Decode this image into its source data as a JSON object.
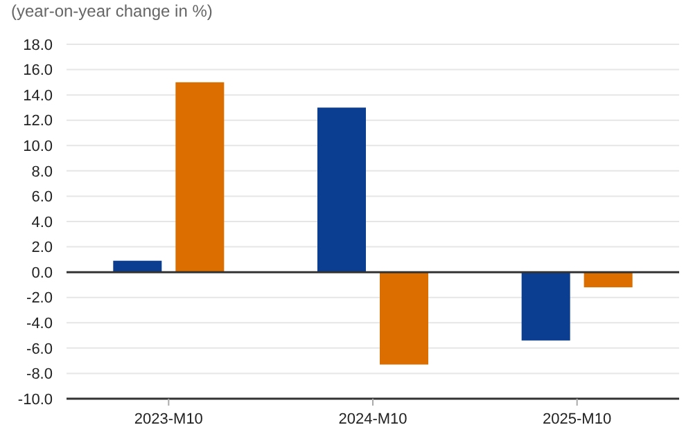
{
  "chart_data": {
    "type": "bar",
    "subtitle": "(year-on-year change in %)",
    "categories": [
      "2023-M10",
      "2024-M10",
      "2025-M10"
    ],
    "series": [
      {
        "color": "#0b3d91",
        "values": [
          0.9,
          13.0,
          -5.4
        ]
      },
      {
        "color": "#dc6e00",
        "values": [
          15.0,
          -7.3,
          -1.2
        ]
      }
    ],
    "ylim": [
      -10,
      18
    ],
    "yticks": [
      {
        "value": -10,
        "label": "-10.0"
      },
      {
        "value": -8,
        "label": "-8.0"
      },
      {
        "value": -6,
        "label": "-6.0"
      },
      {
        "value": -4,
        "label": "-4.0"
      },
      {
        "value": -2,
        "label": "-2.0"
      },
      {
        "value": 0,
        "label": "0.0"
      },
      {
        "value": 2,
        "label": "2.0"
      },
      {
        "value": 4,
        "label": "4.0"
      },
      {
        "value": 6,
        "label": "6.0"
      },
      {
        "value": 8,
        "label": "8.0"
      },
      {
        "value": 10,
        "label": "10.0"
      },
      {
        "value": 12,
        "label": "12.0"
      },
      {
        "value": 14,
        "label": "14.0"
      },
      {
        "value": 16,
        "label": "16.0"
      },
      {
        "value": 18,
        "label": "18.0"
      }
    ],
    "grid": "y"
  }
}
